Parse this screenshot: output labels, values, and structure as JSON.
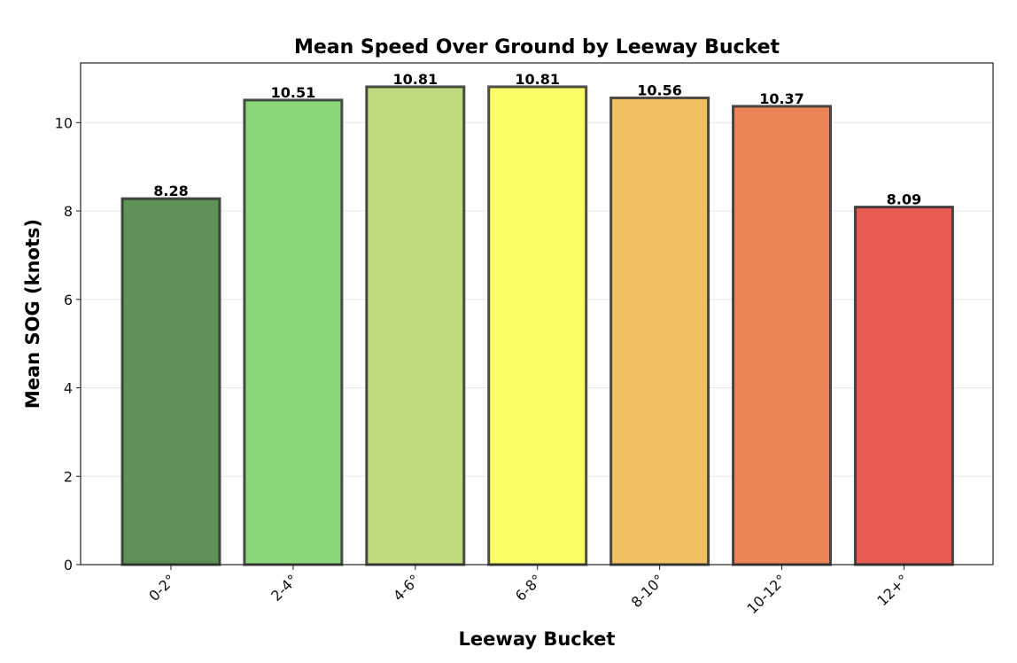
{
  "chart_data": {
    "type": "bar",
    "title": "Mean Speed Over Ground by Leeway Bucket",
    "xlabel": "Leeway Bucket",
    "ylabel": "Mean SOG (knots)",
    "categories": [
      "0-2°",
      "2-4°",
      "4-6°",
      "6-8°",
      "8-10°",
      "10-12°",
      "12+°"
    ],
    "values": [
      8.28,
      10.51,
      10.81,
      10.81,
      10.56,
      10.37,
      8.09
    ],
    "value_labels": [
      "8.28",
      "10.51",
      "10.81",
      "10.81",
      "10.56",
      "10.37",
      "8.09"
    ],
    "colors": [
      "#5e9156",
      "#8bd87a",
      "#c0da7e",
      "#fefe66",
      "#f2c262",
      "#ec8356",
      "#e85b53"
    ],
    "ylim": [
      0,
      11.35
    ],
    "yticks": [
      0,
      2,
      4,
      6,
      8,
      10
    ],
    "grid": "y",
    "legend": null
  }
}
